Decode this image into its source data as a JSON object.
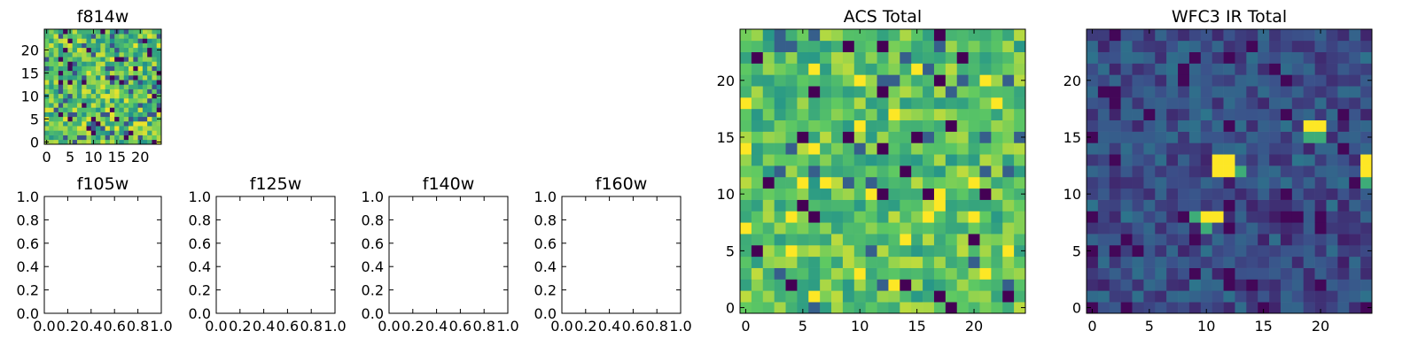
{
  "chart_data": [
    {
      "type": "heatmap",
      "title": "f814w",
      "grid_size": 25,
      "xlim": [
        -0.5,
        24.5
      ],
      "ylim": [
        -0.5,
        24.5
      ],
      "xticks": [
        0,
        5,
        10,
        15,
        20
      ],
      "yticks": [
        0,
        5,
        10,
        15,
        20
      ],
      "colormap": "viridis",
      "pixel_values": "random noise image (values not labeled)"
    },
    {
      "type": "table",
      "title": "f105w",
      "xlim": [
        0,
        1
      ],
      "ylim": [
        0,
        1
      ],
      "xticks": [
        "0.0",
        "0.2",
        "0.4",
        "0.6",
        "0.8",
        "1.0"
      ],
      "yticks": [
        "0.0",
        "0.2",
        "0.4",
        "0.6",
        "0.8",
        "1.0"
      ],
      "empty": true
    },
    {
      "type": "table",
      "title": "f125w",
      "xlim": [
        0,
        1
      ],
      "ylim": [
        0,
        1
      ],
      "xticks": [
        "0.0",
        "0.2",
        "0.4",
        "0.6",
        "0.8",
        "1.0"
      ],
      "yticks": [
        "0.0",
        "0.2",
        "0.4",
        "0.6",
        "0.8",
        "1.0"
      ],
      "empty": true
    },
    {
      "type": "table",
      "title": "f140w",
      "xlim": [
        0,
        1
      ],
      "ylim": [
        0,
        1
      ],
      "xticks": [
        "0.0",
        "0.2",
        "0.4",
        "0.6",
        "0.8",
        "1.0"
      ],
      "yticks": [
        "0.0",
        "0.2",
        "0.4",
        "0.6",
        "0.8",
        "1.0"
      ],
      "empty": true
    },
    {
      "type": "table",
      "title": "f160w",
      "xlim": [
        0,
        1
      ],
      "ylim": [
        0,
        1
      ],
      "xticks": [
        "0.0",
        "0.2",
        "0.4",
        "0.6",
        "0.8",
        "1.0"
      ],
      "yticks": [
        "0.0",
        "0.2",
        "0.4",
        "0.6",
        "0.8",
        "1.0"
      ],
      "empty": true
    },
    {
      "type": "heatmap",
      "title": "ACS Total",
      "grid_size": 25,
      "xlim": [
        -0.5,
        24.5
      ],
      "ylim": [
        -0.5,
        24.5
      ],
      "xticks": [
        0,
        5,
        10,
        15,
        20
      ],
      "yticks": [
        0,
        5,
        10,
        15,
        20
      ],
      "colormap": "viridis",
      "pixel_values": "random noise image, mostly green/yellow (values not labeled)"
    },
    {
      "type": "heatmap",
      "title": "WFC3 IR Total",
      "grid_size": 25,
      "xlim": [
        -0.5,
        24.5
      ],
      "ylim": [
        -0.5,
        24.5
      ],
      "xticks": [
        0,
        5,
        10,
        15,
        20
      ],
      "yticks": [
        0,
        5,
        10,
        15,
        20
      ],
      "colormap": "viridis",
      "pixel_values": "mostly dark blue noise with bright yellow pixels",
      "bright_pixels": [
        {
          "x": 19,
          "y": 16
        },
        {
          "x": 20,
          "y": 16
        },
        {
          "x": 11,
          "y": 13
        },
        {
          "x": 12,
          "y": 13
        },
        {
          "x": 11,
          "y": 12
        },
        {
          "x": 12,
          "y": 12
        },
        {
          "x": 24,
          "y": 13
        },
        {
          "x": 24,
          "y": 12
        },
        {
          "x": 10,
          "y": 8
        },
        {
          "x": 11,
          "y": 8
        }
      ],
      "medium_pixels": [
        {
          "x": 19,
          "y": 15
        },
        {
          "x": 20,
          "y": 15
        },
        {
          "x": 10,
          "y": 7
        },
        {
          "x": 13,
          "y": 12
        },
        {
          "x": 9,
          "y": 8
        },
        {
          "x": 24,
          "y": 11
        }
      ]
    }
  ]
}
